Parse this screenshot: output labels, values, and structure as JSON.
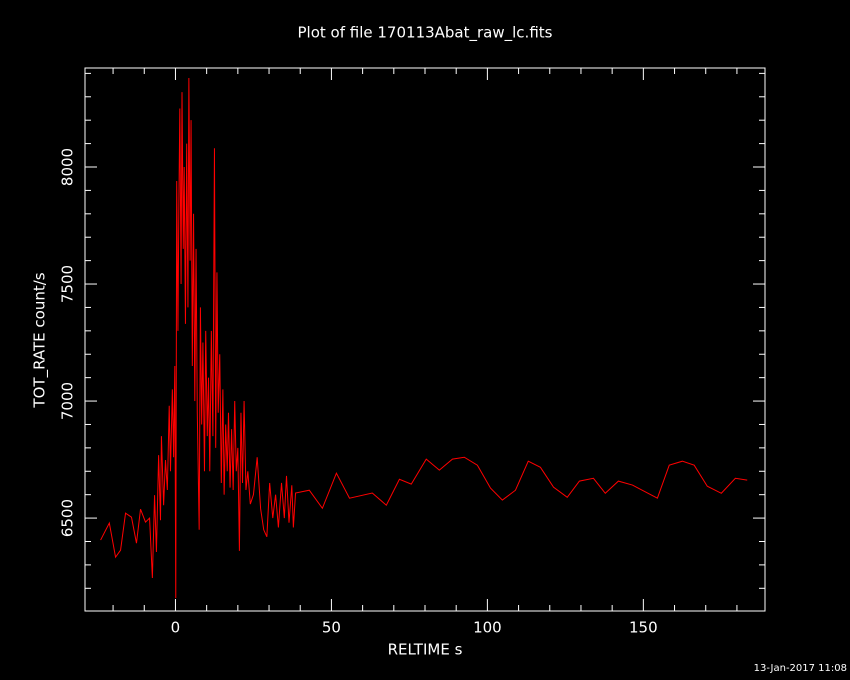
{
  "chart_data": {
    "type": "line",
    "title": "Plot of file 170113Abat_raw_lc.fits",
    "xlabel": "RELTIME  s",
    "ylabel": "TOT_RATE  count/s",
    "timestamp": "13-Jan-2017 11:08",
    "color": "#ff0000",
    "xlim": [
      -29,
      189
    ],
    "ylim": [
      6103,
      8423
    ],
    "xticks": [
      0,
      50,
      100,
      150
    ],
    "yticks": [
      6500,
      7000,
      7500,
      8000
    ],
    "xminorticks": [
      -20,
      -10,
      10,
      20,
      30,
      40,
      60,
      70,
      80,
      90,
      110,
      120,
      130,
      140,
      160,
      170,
      180
    ],
    "yminorticks": [
      6200,
      6300,
      6400,
      6600,
      6700,
      6800,
      6900,
      7100,
      7200,
      7300,
      7400,
      7600,
      7700,
      7800,
      7900,
      8100,
      8200,
      8300,
      8400
    ],
    "x": [
      -24,
      -21.2,
      -19.2,
      -17.6,
      -16,
      -14.1,
      -12.5,
      -11.2,
      -9.6,
      -8.3,
      -7.4,
      -6.7,
      -6.1,
      -5.4,
      -4.8,
      -4.5,
      -3.8,
      -3.2,
      -2.6,
      -2.0,
      -1.6,
      -1.0,
      -0.6,
      -0.2,
      0.1,
      0.4,
      0.8,
      1.1,
      1.4,
      1.8,
      2.1,
      2.5,
      2.8,
      3.2,
      3.6,
      4.0,
      4.3,
      4.7,
      5.0,
      5.4,
      5.8,
      6.2,
      6.6,
      7.0,
      7.6,
      8.0,
      8.4,
      8.8,
      9.3,
      9.7,
      10.2,
      10.6,
      11.0,
      11.5,
      12.0,
      12.5,
      12.9,
      13.3,
      13.7,
      14.2,
      14.7,
      15.2,
      15.6,
      16.1,
      16.6,
      17.0,
      17.5,
      18.0,
      18.5,
      19.0,
      19.5,
      20.0,
      20.5,
      21.0,
      21.5,
      22.0,
      22.6,
      23.2,
      24.0,
      25.0,
      26.2,
      27.3,
      28.3,
      29.3,
      30.2,
      31.2,
      32.1,
      33.0,
      34.0,
      34.9,
      35.6,
      36.4,
      37.3,
      37.8,
      38.5,
      42.9,
      47.1,
      51.6,
      55.8,
      63.1,
      67.6,
      71.8,
      75.6,
      80.4,
      84.6,
      88.8,
      92.6,
      96.8,
      101,
      104.8,
      109,
      113.1,
      117,
      121.2,
      125.6,
      129.5,
      134,
      137.8,
      142,
      146.5,
      154.5,
      158.3,
      162.5,
      166.3,
      170.5,
      175,
      179.5,
      183.3
    ],
    "values": [
      6406,
      6479,
      6333,
      6363,
      6521,
      6504,
      6393,
      6538,
      6483,
      6500,
      6244,
      6598,
      6355,
      6769,
      6491,
      6850,
      6555,
      6748,
      6620,
      6980,
      6700,
      7050,
      6760,
      7150,
      6158,
      7940,
      7300,
      7850,
      8250,
      7500,
      8320,
      7650,
      8000,
      7330,
      8100,
      7400,
      8380,
      7600,
      8200,
      7150,
      7800,
      7000,
      7650,
      6950,
      6450,
      7400,
      6900,
      7250,
      6700,
      7300,
      6850,
      7100,
      6700,
      7300,
      6850,
      8080,
      6800,
      7550,
      6950,
      7200,
      6650,
      7050,
      6600,
      6900,
      6700,
      6950,
      6630,
      6880,
      6620,
      7000,
      6700,
      6800,
      6360,
      6950,
      6650,
      7000,
      6620,
      6700,
      6560,
      6600,
      6760,
      6540,
      6450,
      6420,
      6650,
      6500,
      6600,
      6460,
      6650,
      6500,
      6680,
      6480,
      6640,
      6460,
      6607,
      6619,
      6542,
      6692,
      6585,
      6607,
      6555,
      6666,
      6645,
      6752,
      6705,
      6752,
      6760,
      6726,
      6628,
      6577,
      6619,
      6743,
      6717,
      6632,
      6589,
      6658,
      6670,
      6606,
      6658,
      6641,
      6585,
      6726,
      6743,
      6726,
      6636,
      6606,
      6670,
      6662
    ]
  }
}
